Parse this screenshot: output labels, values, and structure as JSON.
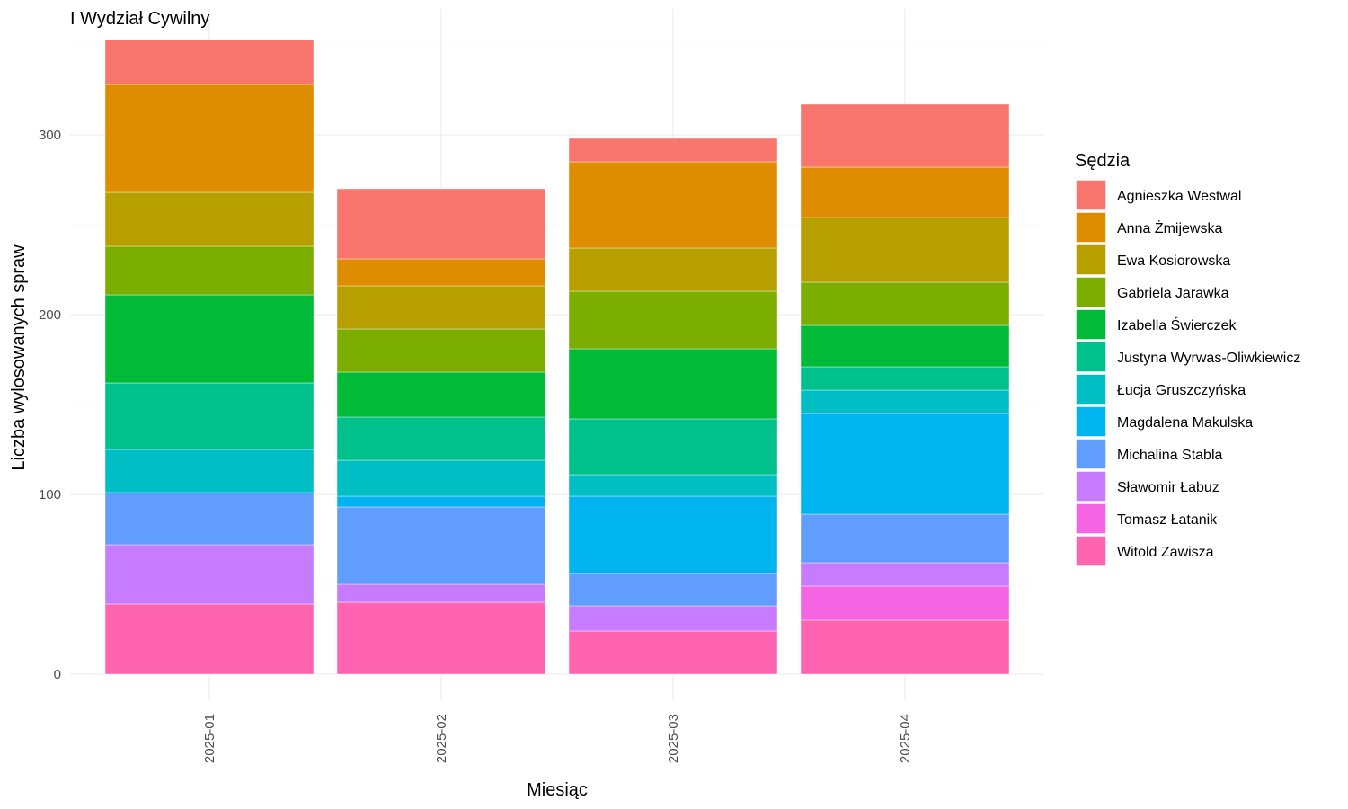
{
  "chart_data": {
    "type": "bar",
    "stacked": true,
    "title": "I Wydział Cywilny",
    "xlabel": "Miesiąc",
    "ylabel": "Liczba wylosowanych spraw",
    "ylim": [
      0,
      360
    ],
    "yticks": [
      0,
      100,
      200,
      300
    ],
    "grid": true,
    "legend_position": "right",
    "legend_title": "Sędzia",
    "categories": [
      "2025-01",
      "2025-02",
      "2025-03",
      "2025-04"
    ],
    "series": [
      {
        "name": "Agnieszka Westwal",
        "color": "#F8766D",
        "values": [
          25,
          39,
          13,
          35
        ]
      },
      {
        "name": "Anna Żmijewska",
        "color": "#DE8C00",
        "values": [
          60,
          15,
          48,
          28
        ]
      },
      {
        "name": "Ewa Kosiorowska",
        "color": "#B79F00",
        "values": [
          30,
          24,
          24,
          36
        ]
      },
      {
        "name": "Gabriela Jarawka",
        "color": "#7CAE00",
        "values": [
          27,
          24,
          32,
          24
        ]
      },
      {
        "name": "Izabella Świerczek",
        "color": "#00BA38",
        "values": [
          49,
          25,
          39,
          23
        ]
      },
      {
        "name": "Justyna Wyrwas-Oliwkiewicz",
        "color": "#00C08B",
        "values": [
          37,
          24,
          31,
          13
        ]
      },
      {
        "name": "Łucja Gruszczyńska",
        "color": "#00BFC4",
        "values": [
          24,
          20,
          12,
          13
        ]
      },
      {
        "name": "Magdalena Makulska",
        "color": "#00B4F0",
        "values": [
          0,
          6,
          43,
          56
        ]
      },
      {
        "name": "Michalina Stabla",
        "color": "#619CFF",
        "values": [
          29,
          43,
          18,
          27
        ]
      },
      {
        "name": "Sławomir Łabuz",
        "color": "#C77CFF",
        "values": [
          33,
          10,
          14,
          13
        ]
      },
      {
        "name": "Tomasz Łatanik",
        "color": "#F564E3",
        "values": [
          0,
          0,
          0,
          19
        ]
      },
      {
        "name": "Witold Zawisza",
        "color": "#FF64B0",
        "values": [
          39,
          40,
          24,
          30
        ]
      }
    ]
  }
}
